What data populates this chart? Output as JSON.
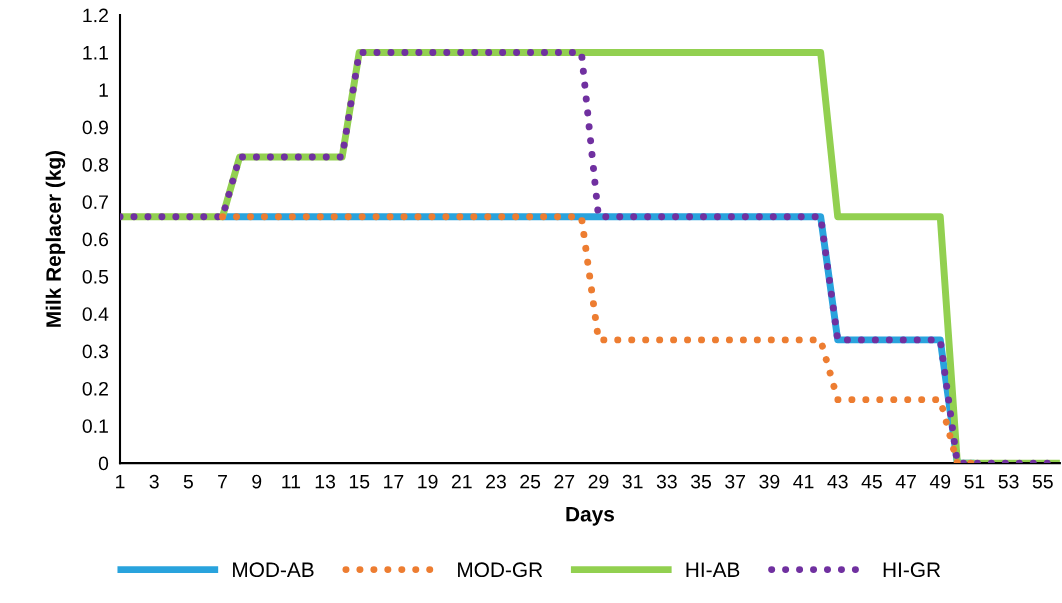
{
  "chart_data": {
    "type": "line",
    "xlabel": "Days",
    "ylabel": "Milk Replacer (kg)",
    "categories": [
      "1",
      null,
      "3",
      null,
      "5",
      null,
      "7",
      null,
      "9",
      null,
      "11",
      null,
      "13",
      null,
      "15",
      null,
      "17",
      null,
      "19",
      null,
      "21",
      null,
      "23",
      null,
      "25",
      null,
      "27",
      null,
      "29",
      null,
      "31",
      null,
      "33",
      null,
      "35",
      null,
      "37",
      null,
      "39",
      null,
      "41",
      null,
      "43",
      null,
      "45",
      null,
      "47",
      null,
      "49",
      null,
      "51",
      null,
      "53",
      null,
      "55",
      null
    ],
    "series": [
      {
        "name": "MOD-AB",
        "color": "#29a3dd",
        "line_style": "solid",
        "values": [
          null,
          null,
          null,
          null,
          null,
          null,
          0.66,
          0.66,
          0.66,
          0.66,
          0.66,
          0.66,
          0.66,
          0.66,
          0.66,
          0.66,
          0.66,
          0.66,
          0.66,
          0.66,
          0.66,
          0.66,
          0.66,
          0.66,
          0.66,
          0.66,
          0.66,
          0.66,
          0.66,
          0.66,
          0.66,
          0.66,
          0.66,
          0.66,
          0.66,
          0.66,
          0.66,
          0.66,
          0.66,
          0.66,
          0.66,
          0.66,
          0.33,
          0.33,
          0.33,
          0.33,
          0.33,
          0.33,
          0.33,
          0,
          0,
          null,
          null,
          null,
          null,
          null
        ]
      },
      {
        "name": "MOD-GR",
        "color": "#ed7d31",
        "line_style": "dotted",
        "values": [
          null,
          null,
          null,
          null,
          null,
          null,
          0.66,
          0.66,
          0.66,
          0.66,
          0.66,
          0.66,
          0.66,
          0.66,
          0.66,
          0.66,
          0.66,
          0.66,
          0.66,
          0.66,
          0.66,
          0.66,
          0.66,
          0.66,
          0.66,
          0.66,
          0.66,
          0.66,
          0.33,
          0.33,
          0.33,
          0.33,
          0.33,
          0.33,
          0.33,
          0.33,
          0.33,
          0.33,
          0.33,
          0.33,
          0.33,
          0.33,
          0.17,
          0.17,
          0.17,
          0.17,
          0.17,
          0.17,
          0.17,
          0,
          0,
          null,
          null,
          null,
          null,
          null
        ]
      },
      {
        "name": "HI-AB",
        "color": "#92d050",
        "line_style": "solid",
        "values": [
          0.66,
          0.66,
          0.66,
          0.66,
          0.66,
          0.66,
          0.66,
          0.82,
          0.82,
          0.82,
          0.82,
          0.82,
          0.82,
          0.82,
          1.1,
          1.1,
          1.1,
          1.1,
          1.1,
          1.1,
          1.1,
          1.1,
          1.1,
          1.1,
          1.1,
          1.1,
          1.1,
          1.1,
          1.1,
          1.1,
          1.1,
          1.1,
          1.1,
          1.1,
          1.1,
          1.1,
          1.1,
          1.1,
          1.1,
          1.1,
          1.1,
          1.1,
          0.66,
          0.66,
          0.66,
          0.66,
          0.66,
          0.66,
          0.66,
          0,
          0,
          0,
          0,
          0,
          0,
          0
        ]
      },
      {
        "name": "HI-GR",
        "color": "#7030a0",
        "line_style": "dotted",
        "values": [
          0.66,
          0.66,
          0.66,
          0.66,
          0.66,
          0.66,
          0.66,
          0.82,
          0.82,
          0.82,
          0.82,
          0.82,
          0.82,
          0.82,
          1.1,
          1.1,
          1.1,
          1.1,
          1.1,
          1.1,
          1.1,
          1.1,
          1.1,
          1.1,
          1.1,
          1.1,
          1.1,
          1.1,
          0.66,
          0.66,
          0.66,
          0.66,
          0.66,
          0.66,
          0.66,
          0.66,
          0.66,
          0.66,
          0.66,
          0.66,
          0.66,
          0.66,
          0.33,
          0.33,
          0.33,
          0.33,
          0.33,
          0.33,
          0.33,
          0,
          0,
          0,
          0,
          0,
          0,
          0
        ]
      }
    ],
    "ylim": [
      0,
      1.2
    ],
    "yticks": [
      0,
      0.1,
      0.2,
      0.3,
      0.4,
      0.5,
      0.6,
      0.7,
      0.8,
      0.9,
      1,
      1.1,
      1.2
    ],
    "grid": false,
    "legend": "bottom",
    "marker": "none"
  }
}
